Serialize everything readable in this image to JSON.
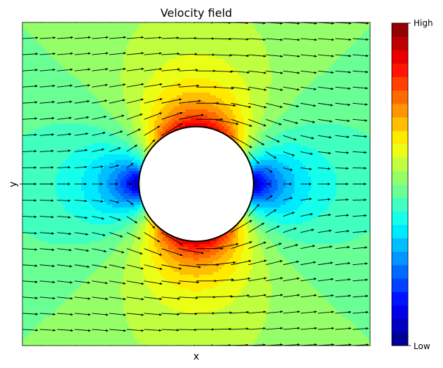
{
  "chart_data": {
    "type": "heatmap",
    "subtype": "contourf-with-quiver",
    "title": "Velocity field",
    "xlabel": "x",
    "ylabel": "y",
    "xlim": [
      -2,
      2
    ],
    "ylim": [
      -2,
      2
    ],
    "x_ticks": [],
    "y_ticks": [
      0
    ],
    "grid": false,
    "field": "potential flow past a cylinder, |V| = |1 - R^2/z^2|",
    "cylinder_radius": 0.66,
    "free_stream_speed": 1.0,
    "speed_min": 0.0,
    "speed_max": 2.0,
    "contour_levels": 24,
    "quiver_grid": {
      "nx": 20,
      "ny": 20
    },
    "colormap": "jet",
    "colorbar": {
      "ticks": [
        "Low",
        "High"
      ],
      "position": "right"
    },
    "obstacle_fill": "#ffffff",
    "obstacle_edge": "#000000"
  }
}
